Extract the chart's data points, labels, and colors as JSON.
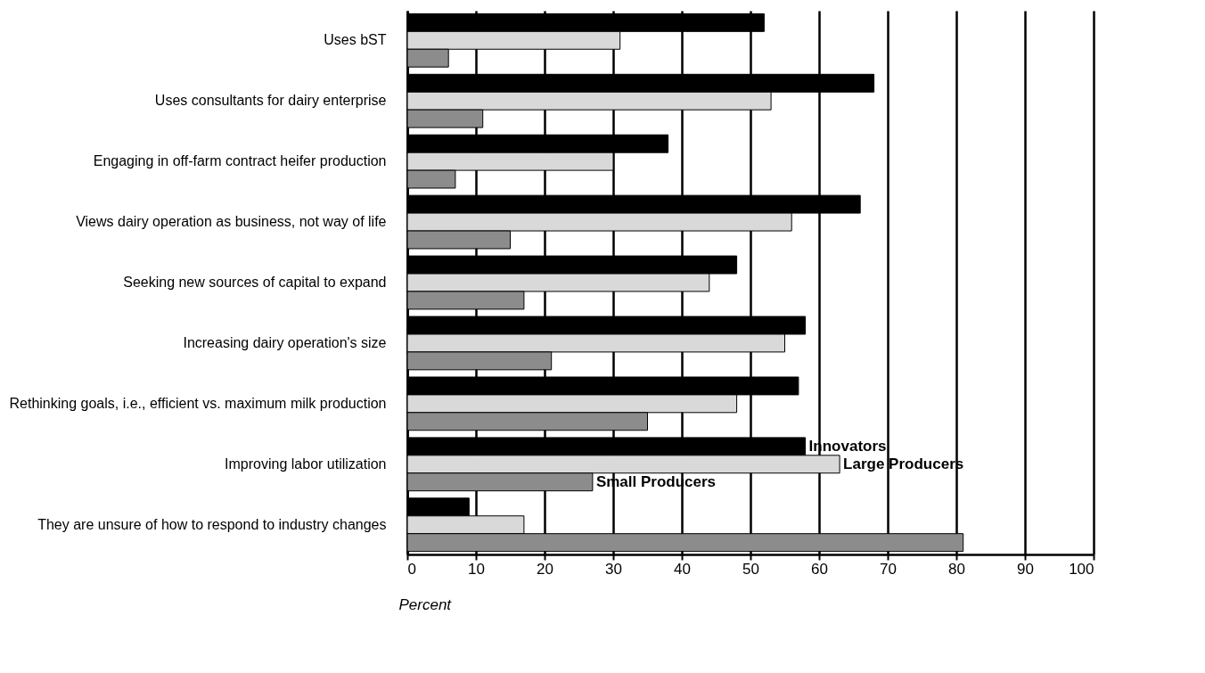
{
  "chart_data": {
    "type": "bar",
    "orientation": "horizontal",
    "xlabel": "Percent",
    "categories": [
      "Uses bST",
      "Uses consultants for dairy enterprise",
      "Engaging in off-farm contract heifer production",
      "Views dairy operation as business, not way of life",
      "Seeking new sources of capital to expand",
      "Increasing dairy operation's size",
      "Rethinking goals, i.e., efficient vs. maximum milk production",
      "Improving labor utilization",
      "They are unsure of how to respond to industry changes"
    ],
    "series": [
      {
        "name": "Innovators",
        "color": "#000000",
        "values": [
          52,
          68,
          38,
          66,
          48,
          58,
          57,
          58,
          9
        ]
      },
      {
        "name": "Large Producers",
        "color": "#d9d9d9",
        "values": [
          31,
          53,
          30,
          56,
          44,
          55,
          48,
          63,
          17
        ]
      },
      {
        "name": "Small Producers",
        "color": "#8c8c8c",
        "values": [
          6,
          11,
          7,
          15,
          17,
          21,
          35,
          27,
          81
        ]
      }
    ],
    "xlim": [
      0,
      100
    ],
    "xticks": [
      0,
      10,
      20,
      30,
      40,
      50,
      60,
      70,
      80,
      90,
      100
    ],
    "grid": "x"
  }
}
